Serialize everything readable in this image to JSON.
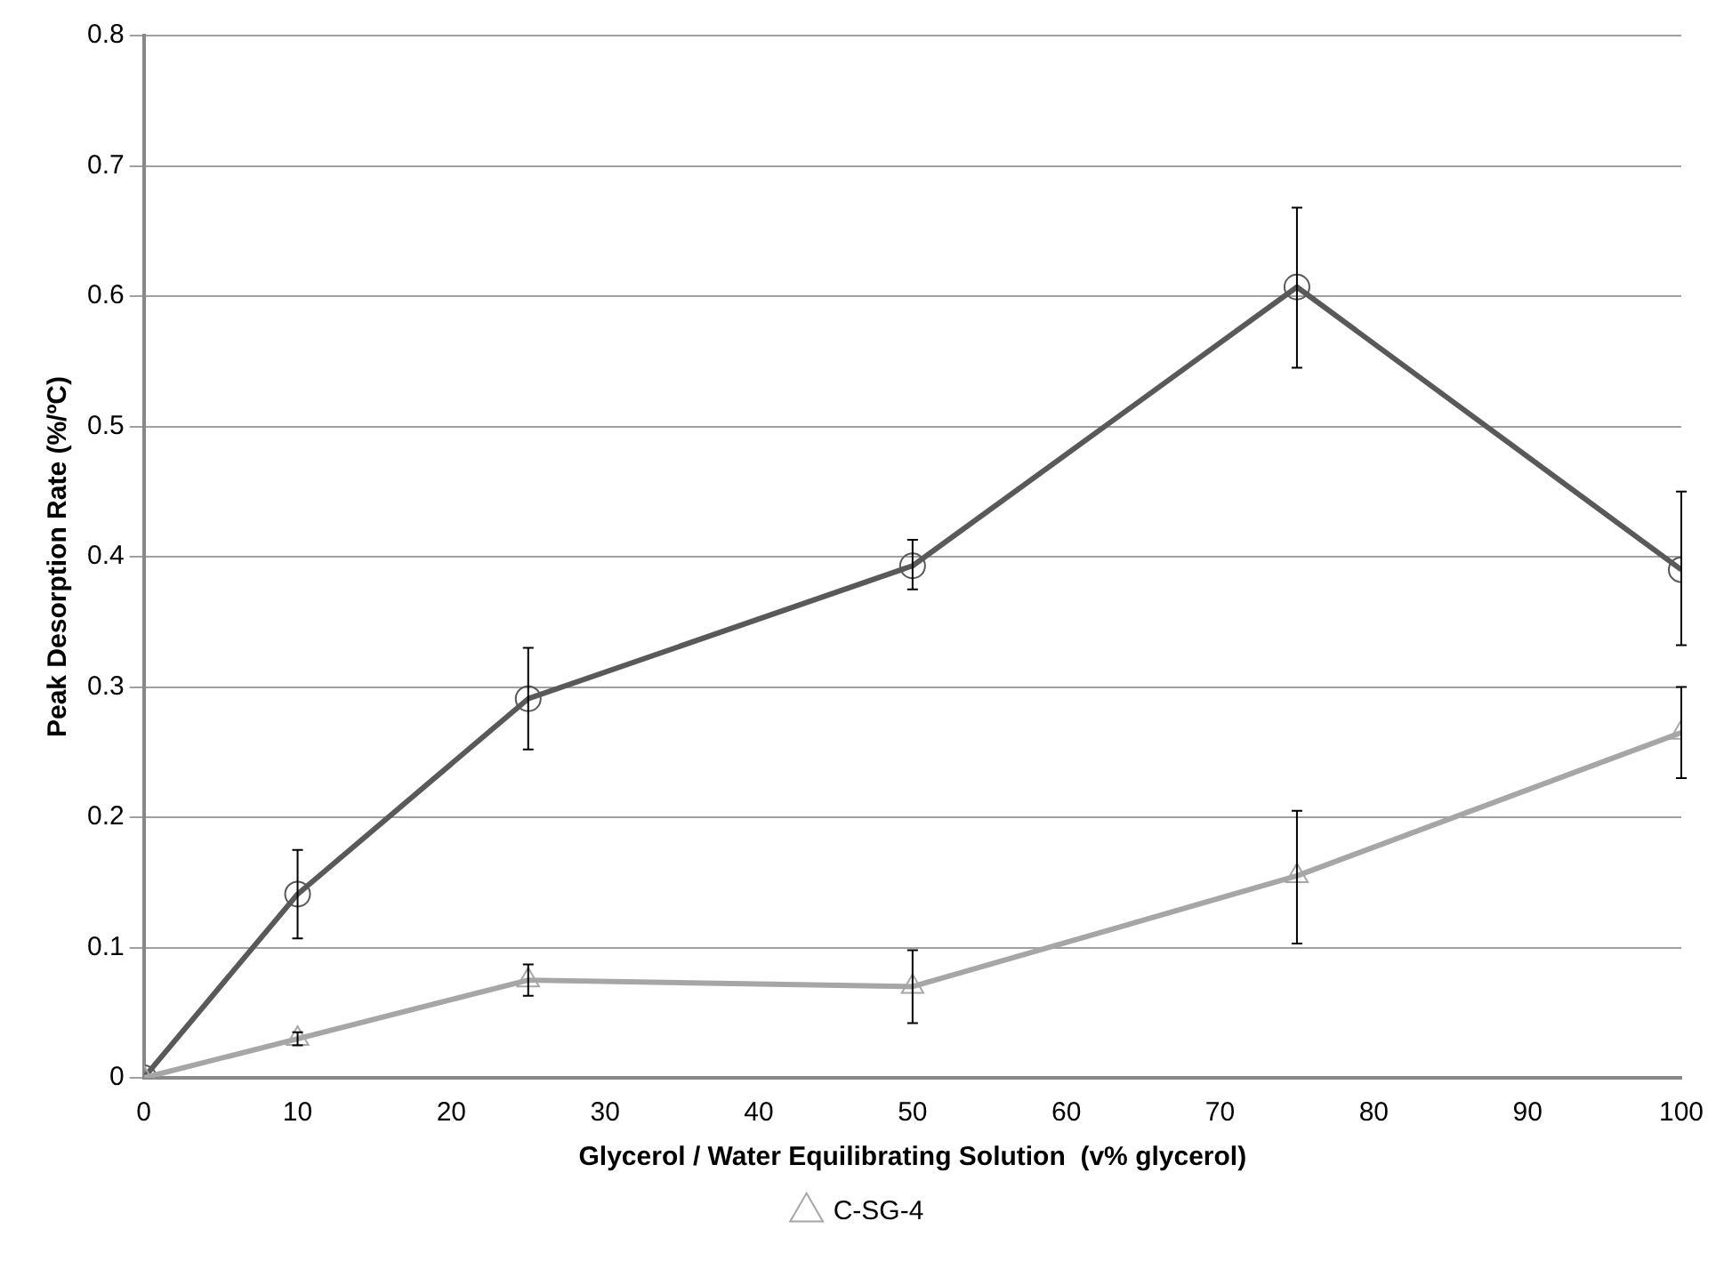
{
  "chart_data": {
    "type": "line",
    "xlabel": "Glycerol / Water Equilibrating Solution  (v% glycerol)",
    "ylabel": "Peak Desorption Rate (%/ºC)",
    "x": [
      0,
      10,
      25,
      50,
      75,
      100
    ],
    "xlim": [
      0,
      100
    ],
    "xticks": [
      0,
      10,
      20,
      30,
      40,
      50,
      60,
      70,
      80,
      90,
      100
    ],
    "ylim": [
      0,
      0.8
    ],
    "yticks": [
      0,
      0.1,
      0.2,
      0.3,
      0.4,
      0.5,
      0.6,
      0.7,
      0.8
    ],
    "grid": "y",
    "legend": "bottom",
    "line_style": "solid",
    "series": [
      {
        "name": "C-SG-4",
        "color": "#a6a6a6",
        "marker": "triangle",
        "values": [
          0,
          0.03,
          0.075,
          0.07,
          0.155,
          0.265
        ],
        "errors": [
          null,
          [
            0.025,
            0.035
          ],
          [
            0.063,
            0.087
          ],
          [
            0.042,
            0.098
          ],
          [
            0.103,
            0.205
          ],
          [
            0.23,
            0.3
          ]
        ]
      },
      {
        "color": "#595959",
        "marker": "circle",
        "values": [
          0,
          0.141,
          0.291,
          0.393,
          0.607,
          0.39
        ],
        "errors": [
          null,
          [
            0.107,
            0.175
          ],
          [
            0.252,
            0.33
          ],
          [
            0.375,
            0.413
          ],
          [
            0.545,
            0.668
          ],
          [
            0.332,
            0.45
          ]
        ]
      }
    ]
  }
}
